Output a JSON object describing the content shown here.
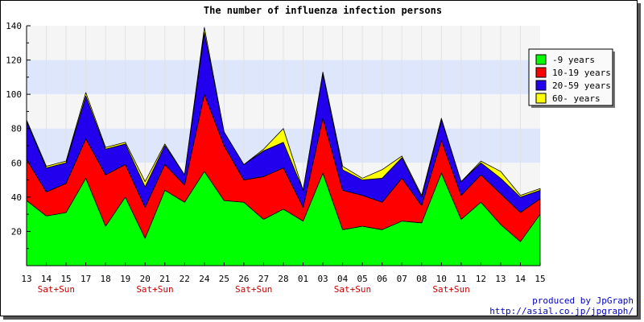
{
  "chart_data": {
    "type": "area",
    "stacked": true,
    "title": "The number of influenza infection persons",
    "categories": [
      "13",
      "14",
      "15",
      "17",
      "18",
      "19",
      "20",
      "21",
      "22",
      "24",
      "25",
      "26",
      "27",
      "28",
      "01",
      "03",
      "04",
      "05",
      "06",
      "07",
      "08",
      "10",
      "11",
      "12",
      "13",
      "14",
      "15"
    ],
    "weekend_labels": [
      {
        "label": "Sat+Sun",
        "after_category_index": 1
      },
      {
        "label": "Sat+Sun",
        "after_category_index": 6
      },
      {
        "label": "Sat+Sun",
        "after_category_index": 11
      },
      {
        "label": "Sat+Sun",
        "after_category_index": 16
      },
      {
        "label": "Sat+Sun",
        "after_category_index": 21
      }
    ],
    "series": [
      {
        "name": "-9 years",
        "color": "#00ff00",
        "values": [
          38,
          29,
          31,
          51,
          23,
          40,
          16,
          44,
          37,
          55,
          38,
          37,
          27,
          33,
          26,
          54,
          21,
          23,
          21,
          26,
          25,
          54,
          27,
          37,
          24,
          14,
          30
        ]
      },
      {
        "name": "10-19 years",
        "color": "#ff0000",
        "values": [
          24,
          14,
          17,
          23,
          30,
          19,
          18,
          15,
          10,
          45,
          32,
          13,
          25,
          24,
          8,
          32,
          23,
          18,
          16,
          25,
          10,
          19,
          14,
          16,
          18,
          17,
          9
        ]
      },
      {
        "name": "20-59 years",
        "color": "#2200ee",
        "values": [
          22,
          14,
          12,
          25,
          15,
          12,
          12,
          11,
          6,
          36,
          8,
          9,
          15,
          15,
          10,
          26,
          12,
          9,
          14,
          12,
          5,
          12,
          8,
          7,
          9,
          9,
          5
        ]
      },
      {
        "name": "60- years",
        "color": "#ffff00",
        "values": [
          1,
          1,
          1,
          2,
          1,
          1,
          3,
          1,
          0,
          3,
          0,
          0,
          1,
          8,
          0,
          1,
          2,
          1,
          5,
          1,
          1,
          1,
          0,
          1,
          4,
          1,
          1
        ]
      }
    ],
    "ylim": [
      0,
      140
    ],
    "yticks": [
      20,
      40,
      60,
      80,
      100,
      120,
      140
    ],
    "band_colors": [
      "#f5f5f5",
      "#dde6fb"
    ],
    "legend_position": "right",
    "grid": true
  },
  "footer": {
    "credit": "produced by JpGraph",
    "url": "http://asial.co.jp/jpgraph/"
  }
}
